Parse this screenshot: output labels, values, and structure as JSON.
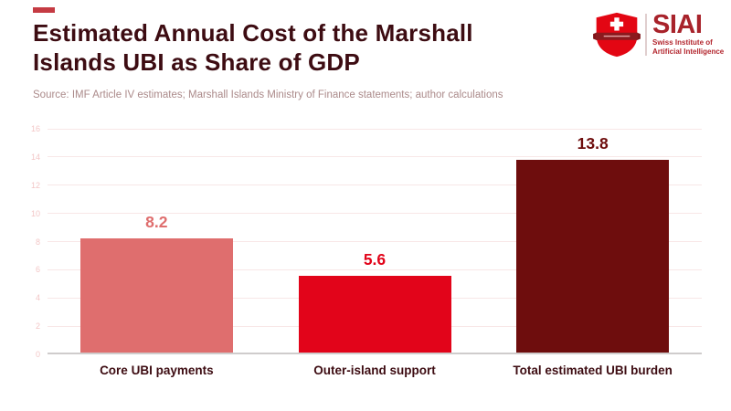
{
  "accent_color": "#c53b43",
  "header": {
    "title_line1": "Estimated Annual Cost of the Marshall",
    "title_line2": "Islands UBI as Share of GDP",
    "source": "Source: IMF Article IV estimates; Marshall Islands Ministry of Finance statements; author calculations"
  },
  "logo": {
    "wordmark": "SIAI",
    "tagline_line1": "Swiss Institute of",
    "tagline_line2": "Artificial Intelligence",
    "shield_color": "#e30613",
    "banner_color": "#7e1418",
    "wordmark_color": "#a8232b"
  },
  "chart_data": {
    "type": "bar",
    "title": "Estimated Annual Cost of the Marshall Islands UBI as Share of GDP",
    "categories": [
      "Core UBI payments",
      "Outer-island support",
      "Total estimated UBI burden"
    ],
    "values": [
      8.2,
      5.6,
      13.8
    ],
    "value_labels": [
      "8.2",
      "5.6",
      "13.8"
    ],
    "bar_colors": [
      "#df6e6e",
      "#e2041a",
      "#6e0d0d"
    ],
    "xlabel": "",
    "ylabel": "",
    "ylim": [
      0,
      16
    ],
    "yticks": [
      0,
      2,
      4,
      6,
      8,
      10,
      12,
      14,
      16
    ],
    "grid": true,
    "legend": false,
    "grid_color": "#f8e7e7",
    "ytick_color": "#f3c7c7",
    "category_label_color": "#3d0c12"
  }
}
